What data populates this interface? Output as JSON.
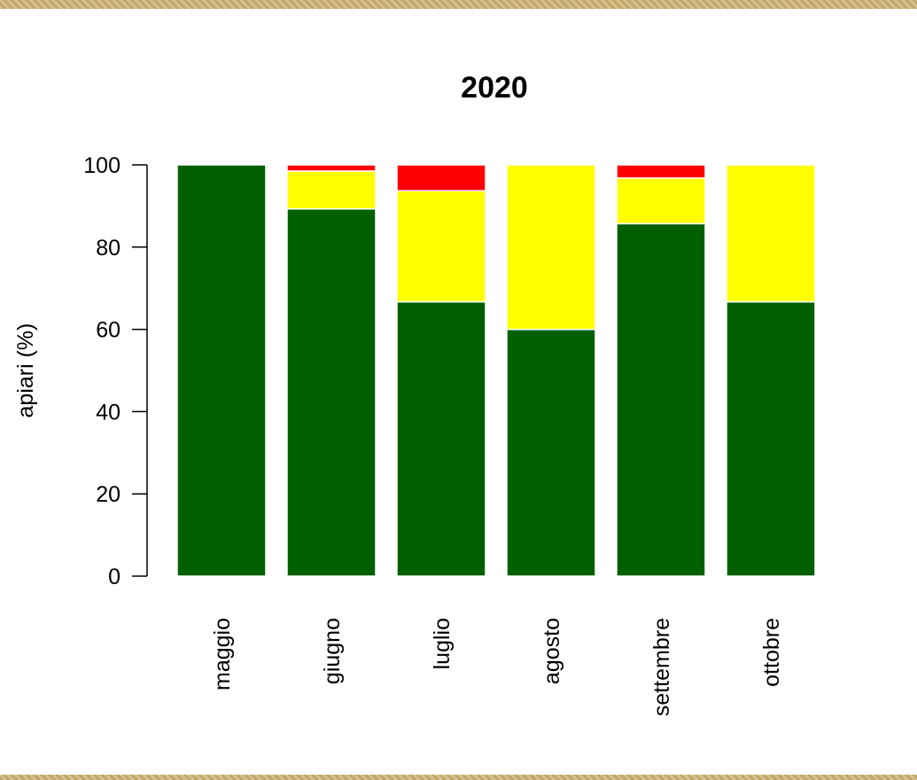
{
  "chart_data": {
    "type": "bar",
    "stacked": true,
    "title": "2020",
    "xlabel": "",
    "ylabel": "apiari (%)",
    "ylim": [
      0,
      100
    ],
    "yticks": [
      0,
      20,
      40,
      60,
      80,
      100
    ],
    "categories": [
      "maggio",
      "giugno",
      "luglio",
      "agosto",
      "settembre",
      "ottobre"
    ],
    "series": [
      {
        "color": "#006000",
        "values": [
          100,
          89.3,
          66.7,
          60,
          85.7,
          66.7
        ]
      },
      {
        "color": "#ffff00",
        "values": [
          0,
          9.2,
          27.0,
          40,
          11.1,
          33.3
        ]
      },
      {
        "color": "#ff0000",
        "values": [
          0,
          1.5,
          6.3,
          0,
          3.2,
          0
        ]
      }
    ],
    "grid": false,
    "legend": "none"
  }
}
